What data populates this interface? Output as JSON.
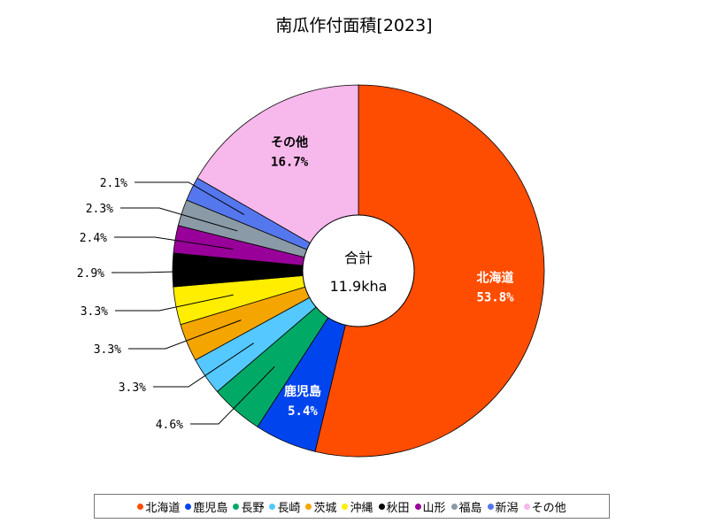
{
  "chart_data": {
    "type": "pie",
    "title": "南瓜作付面積[2023]",
    "center_label": "合計",
    "center_value": "11.9kha",
    "slices": [
      {
        "name": "北海道",
        "value": 53.8,
        "label": "53.8%",
        "color": "#ff4d00"
      },
      {
        "name": "鹿児島",
        "value": 5.4,
        "label": "5.4%",
        "color": "#0044ee"
      },
      {
        "name": "長野",
        "value": 4.6,
        "label": "4.6%",
        "color": "#00aa66"
      },
      {
        "name": "長崎",
        "value": 3.3,
        "label": "3.3%",
        "color": "#55c8ff"
      },
      {
        "name": "茨城",
        "value": 3.3,
        "label": "3.3%",
        "color": "#f5a500"
      },
      {
        "name": "沖縄",
        "value": 3.3,
        "label": "3.3%",
        "color": "#ffee00"
      },
      {
        "name": "秋田",
        "value": 2.9,
        "label": "2.9%",
        "color": "#000000"
      },
      {
        "name": "山形",
        "value": 2.4,
        "label": "2.4%",
        "color": "#990099"
      },
      {
        "name": "福島",
        "value": 2.3,
        "label": "2.3%",
        "color": "#8a9aa6"
      },
      {
        "name": "新潟",
        "value": 2.1,
        "label": "2.1%",
        "color": "#5577ee"
      },
      {
        "name": "その他",
        "value": 16.7,
        "label": "16.7%",
        "color": "#f7b8ec"
      }
    ],
    "legend": {
      "placement": "bottom"
    }
  }
}
